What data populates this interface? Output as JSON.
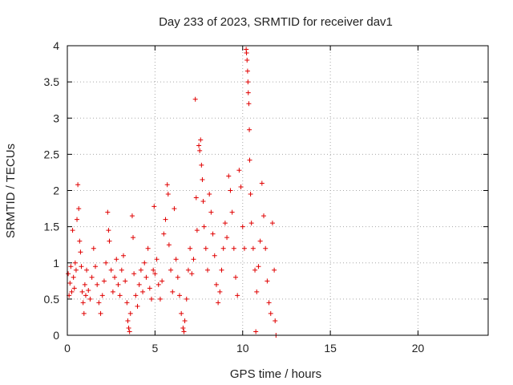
{
  "chart_data": {
    "type": "scatter",
    "title": "Day 233 of 2023, SRMTID for receiver dav1",
    "xlabel": "GPS time / hours",
    "ylabel": "SRMTID / TECUs",
    "xlim": [
      0,
      24
    ],
    "ylim": [
      0,
      4
    ],
    "xticks": [
      0,
      5,
      10,
      15,
      20
    ],
    "xtick_labels": [
      "0",
      "5",
      "10",
      "15",
      "20"
    ],
    "yticks": [
      0,
      0.5,
      1,
      1.5,
      2,
      2.5,
      3,
      3.5,
      4
    ],
    "ytick_labels": [
      "0",
      "0.5",
      "1",
      "1.5",
      "2",
      "2.5",
      "3",
      "3.5",
      "4"
    ],
    "grid": true,
    "marker": "+",
    "color": "#e00000",
    "data_extent_hours": [
      0,
      11.9
    ],
    "series": [
      {
        "name": "dav1",
        "points": [
          [
            0.05,
            0.85
          ],
          [
            0.1,
            0.55
          ],
          [
            0.15,
            0.72
          ],
          [
            0.2,
            0.95
          ],
          [
            0.25,
            0.6
          ],
          [
            0.3,
            1.45
          ],
          [
            0.35,
            0.8
          ],
          [
            0.4,
            0.65
          ],
          [
            0.45,
            1.0
          ],
          [
            0.5,
            0.9
          ],
          [
            0.55,
            1.6
          ],
          [
            0.6,
            2.08
          ],
          [
            0.65,
            1.75
          ],
          [
            0.7,
            1.3
          ],
          [
            0.75,
            1.15
          ],
          [
            0.8,
            0.95
          ],
          [
            0.85,
            0.6
          ],
          [
            0.9,
            0.45
          ],
          [
            0.95,
            0.3
          ],
          [
            1.0,
            0.7
          ],
          [
            1.05,
            0.55
          ],
          [
            1.1,
            0.9
          ],
          [
            1.2,
            0.62
          ],
          [
            1.3,
            0.5
          ],
          [
            1.4,
            0.8
          ],
          [
            1.5,
            1.2
          ],
          [
            1.6,
            0.95
          ],
          [
            1.7,
            0.7
          ],
          [
            1.8,
            0.45
          ],
          [
            1.9,
            0.3
          ],
          [
            2.0,
            0.55
          ],
          [
            2.1,
            0.75
          ],
          [
            2.2,
            1.0
          ],
          [
            2.3,
            1.7
          ],
          [
            2.35,
            1.45
          ],
          [
            2.4,
            1.3
          ],
          [
            2.5,
            0.9
          ],
          [
            2.6,
            0.6
          ],
          [
            2.7,
            0.8
          ],
          [
            2.8,
            1.05
          ],
          [
            2.9,
            0.7
          ],
          [
            3.0,
            0.55
          ],
          [
            3.1,
            0.9
          ],
          [
            3.2,
            1.1
          ],
          [
            3.3,
            0.75
          ],
          [
            3.4,
            0.45
          ],
          [
            3.45,
            0.2
          ],
          [
            3.5,
            0.1
          ],
          [
            3.55,
            0.05
          ],
          [
            3.6,
            0.3
          ],
          [
            3.7,
            1.65
          ],
          [
            3.75,
            1.35
          ],
          [
            3.8,
            0.85
          ],
          [
            3.9,
            0.55
          ],
          [
            4.0,
            0.4
          ],
          [
            4.1,
            0.7
          ],
          [
            4.2,
            0.9
          ],
          [
            4.3,
            0.6
          ],
          [
            4.4,
            1.0
          ],
          [
            4.5,
            0.8
          ],
          [
            4.6,
            1.2
          ],
          [
            4.7,
            0.65
          ],
          [
            4.8,
            0.5
          ],
          [
            4.9,
            0.9
          ],
          [
            4.95,
            1.78
          ],
          [
            5.0,
            0.85
          ],
          [
            5.1,
            1.05
          ],
          [
            5.2,
            0.7
          ],
          [
            5.3,
            0.5
          ],
          [
            5.4,
            0.75
          ],
          [
            5.5,
            1.4
          ],
          [
            5.6,
            1.6
          ],
          [
            5.7,
            2.08
          ],
          [
            5.75,
            1.95
          ],
          [
            5.8,
            1.25
          ],
          [
            5.9,
            0.9
          ],
          [
            6.0,
            0.6
          ],
          [
            6.1,
            1.75
          ],
          [
            6.2,
            1.05
          ],
          [
            6.3,
            0.8
          ],
          [
            6.4,
            0.55
          ],
          [
            6.5,
            0.3
          ],
          [
            6.6,
            0.1
          ],
          [
            6.65,
            0.05
          ],
          [
            6.7,
            0.2
          ],
          [
            6.8,
            0.5
          ],
          [
            6.9,
            0.9
          ],
          [
            7.0,
            1.2
          ],
          [
            7.1,
            0.85
          ],
          [
            7.2,
            1.05
          ],
          [
            7.3,
            3.26
          ],
          [
            7.35,
            1.9
          ],
          [
            7.4,
            1.45
          ],
          [
            7.5,
            2.62
          ],
          [
            7.55,
            2.55
          ],
          [
            7.6,
            2.7
          ],
          [
            7.65,
            2.35
          ],
          [
            7.7,
            2.15
          ],
          [
            7.75,
            1.85
          ],
          [
            7.8,
            1.5
          ],
          [
            7.9,
            1.2
          ],
          [
            8.0,
            0.9
          ],
          [
            8.1,
            1.95
          ],
          [
            8.2,
            1.7
          ],
          [
            8.3,
            1.4
          ],
          [
            8.4,
            1.1
          ],
          [
            8.5,
            0.7
          ],
          [
            8.6,
            0.45
          ],
          [
            8.7,
            0.6
          ],
          [
            8.8,
            0.9
          ],
          [
            8.9,
            1.2
          ],
          [
            9.0,
            1.55
          ],
          [
            9.1,
            1.35
          ],
          [
            9.2,
            2.2
          ],
          [
            9.3,
            2.0
          ],
          [
            9.4,
            1.7
          ],
          [
            9.5,
            1.2
          ],
          [
            9.6,
            0.8
          ],
          [
            9.7,
            0.55
          ],
          [
            9.8,
            2.28
          ],
          [
            9.9,
            2.05
          ],
          [
            10.0,
            1.5
          ],
          [
            10.1,
            1.2
          ],
          [
            10.2,
            3.95
          ],
          [
            10.22,
            3.9
          ],
          [
            10.25,
            3.8
          ],
          [
            10.28,
            3.65
          ],
          [
            10.3,
            3.5
          ],
          [
            10.32,
            3.35
          ],
          [
            10.35,
            3.2
          ],
          [
            10.38,
            2.84
          ],
          [
            10.4,
            2.42
          ],
          [
            10.45,
            1.95
          ],
          [
            10.5,
            1.55
          ],
          [
            10.6,
            1.2
          ],
          [
            10.7,
            0.9
          ],
          [
            10.75,
            0.05
          ],
          [
            10.8,
            0.6
          ],
          [
            10.9,
            0.95
          ],
          [
            11.0,
            1.3
          ],
          [
            11.1,
            2.1
          ],
          [
            11.2,
            1.65
          ],
          [
            11.3,
            1.2
          ],
          [
            11.4,
            0.75
          ],
          [
            11.5,
            0.45
          ],
          [
            11.6,
            0.3
          ],
          [
            11.7,
            1.55
          ],
          [
            11.8,
            0.9
          ],
          [
            11.85,
            0.2
          ],
          [
            11.9,
            0.0
          ]
        ]
      }
    ]
  }
}
